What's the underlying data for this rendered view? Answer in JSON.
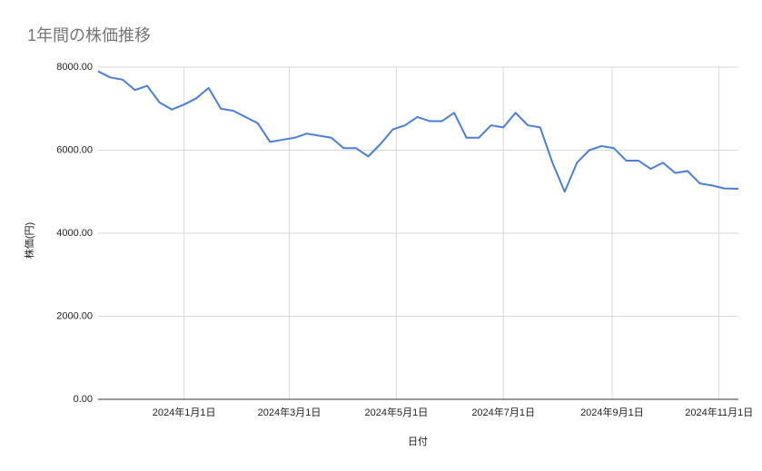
{
  "chart_data": {
    "type": "line",
    "title": "1年間の株価推移",
    "x_label": "日付",
    "y_label": "株価(円)",
    "x": [
      "2023-11-13",
      "2023-11-20",
      "2023-11-27",
      "2023-12-04",
      "2023-12-11",
      "2023-12-18",
      "2023-12-25",
      "2024-01-01",
      "2024-01-08",
      "2024-01-15",
      "2024-01-22",
      "2024-01-29",
      "2024-02-05",
      "2024-02-12",
      "2024-02-19",
      "2024-02-26",
      "2024-03-04",
      "2024-03-11",
      "2024-03-18",
      "2024-03-25",
      "2024-04-01",
      "2024-04-08",
      "2024-04-15",
      "2024-04-22",
      "2024-04-29",
      "2024-05-06",
      "2024-05-13",
      "2024-05-20",
      "2024-05-27",
      "2024-06-03",
      "2024-06-10",
      "2024-06-17",
      "2024-06-24",
      "2024-07-01",
      "2024-07-08",
      "2024-07-15",
      "2024-07-22",
      "2024-07-29",
      "2024-08-05",
      "2024-08-12",
      "2024-08-19",
      "2024-08-26",
      "2024-09-02",
      "2024-09-09",
      "2024-09-16",
      "2024-09-23",
      "2024-09-30",
      "2024-10-07",
      "2024-10-14",
      "2024-10-21",
      "2024-10-28",
      "2024-11-04",
      "2024-11-12"
    ],
    "series": [
      {
        "name": "株価",
        "color": "#4a7fd4",
        "values": [
          7900,
          7750,
          7700,
          7450,
          7550,
          7150,
          6980,
          7100,
          7250,
          7500,
          7000,
          6950,
          6800,
          6650,
          6200,
          6250,
          6300,
          6400,
          6350,
          6300,
          6050,
          6050,
          5850,
          6150,
          6500,
          6600,
          6800,
          6700,
          6700,
          6900,
          6300,
          6300,
          6600,
          6550,
          6900,
          6600,
          6550,
          5700,
          5000,
          5700,
          6000,
          6100,
          6050,
          5750,
          5750,
          5550,
          5700,
          5450,
          5500,
          5200,
          5150,
          5080,
          5070
        ]
      }
    ],
    "xlim": [
      "2023-11-13",
      "2024-11-12"
    ],
    "xticks": [
      {
        "value": "2024-01-01",
        "label": "2024年1月1日"
      },
      {
        "value": "2024-03-01",
        "label": "2024年3月1日"
      },
      {
        "value": "2024-05-01",
        "label": "2024年5月1日"
      },
      {
        "value": "2024-07-01",
        "label": "2024年7月1日"
      },
      {
        "value": "2024-09-01",
        "label": "2024年9月1日"
      },
      {
        "value": "2024-11-01",
        "label": "2024年11月1日"
      }
    ],
    "ylim": [
      0,
      8000
    ],
    "yticks": [
      {
        "value": 0,
        "label": "0.00"
      },
      {
        "value": 2000,
        "label": "2000.00"
      },
      {
        "value": 4000,
        "label": "4000.00"
      },
      {
        "value": 6000,
        "label": "6000.00"
      },
      {
        "value": 8000,
        "label": "8000.00"
      }
    ],
    "grid": true
  }
}
